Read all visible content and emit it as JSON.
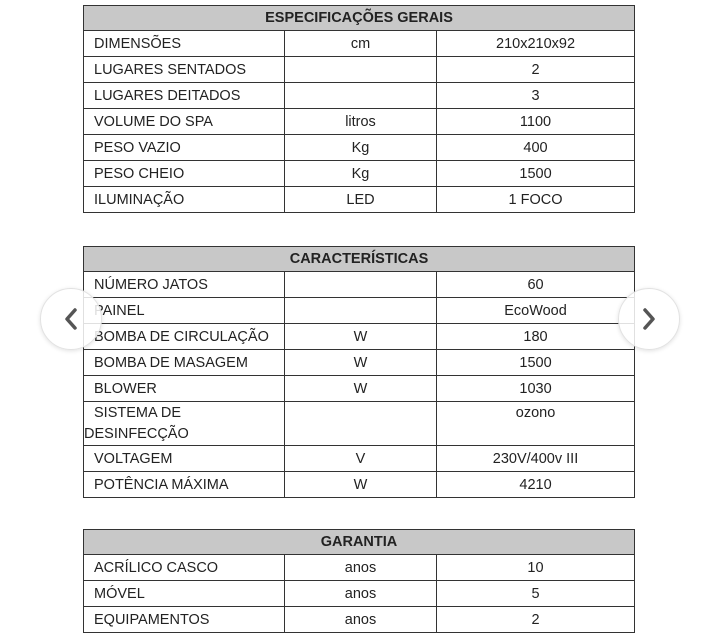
{
  "tables": [
    {
      "title": "ESPECIFICAÇÕES GERAIS",
      "rows": [
        [
          "DIMENSÕES",
          "cm",
          "210x210x92"
        ],
        [
          "LUGARES SENTADOS",
          "",
          "2"
        ],
        [
          "LUGARES DEITADOS",
          "",
          "3"
        ],
        [
          "VOLUME DO SPA",
          "litros",
          "1100"
        ],
        [
          "PESO VAZIO",
          "Kg",
          "400"
        ],
        [
          "PESO CHEIO",
          "Kg",
          "1500"
        ],
        [
          "ILUMINAÇÃO",
          "LED",
          "1 FOCO"
        ]
      ]
    },
    {
      "title": "CARACTERÍSTICAS",
      "rows": [
        [
          "NÚMERO JATOS",
          "",
          "60"
        ],
        [
          "PAINEL",
          "",
          "EcoWood"
        ],
        [
          "BOMBA DE CIRCULAÇÃO",
          "W",
          "180"
        ],
        [
          "BOMBA DE MASAGEM",
          "W",
          "1500"
        ],
        [
          "BLOWER",
          "W",
          "1030"
        ],
        [
          "SISTEMA DE DESINFECÇÃO",
          "",
          "ozono"
        ],
        [
          "VOLTAGEM",
          "V",
          "230V/400v III"
        ],
        [
          "POTÊNCIA MÁXIMA",
          "W",
          "4210"
        ]
      ],
      "multiline_label": [
        "SISTEMA DE",
        "DESINFECÇÃO"
      ]
    },
    {
      "title": "GARANTIA",
      "rows": [
        [
          "ACRÍLICO CASCO",
          "anos",
          "10"
        ],
        [
          "MÓVEL",
          "anos",
          "5"
        ],
        [
          "EQUIPAMENTOS",
          "anos",
          "2"
        ]
      ]
    }
  ],
  "nav": {
    "prev_icon": "chevron-left-icon",
    "next_icon": "chevron-right-icon"
  }
}
